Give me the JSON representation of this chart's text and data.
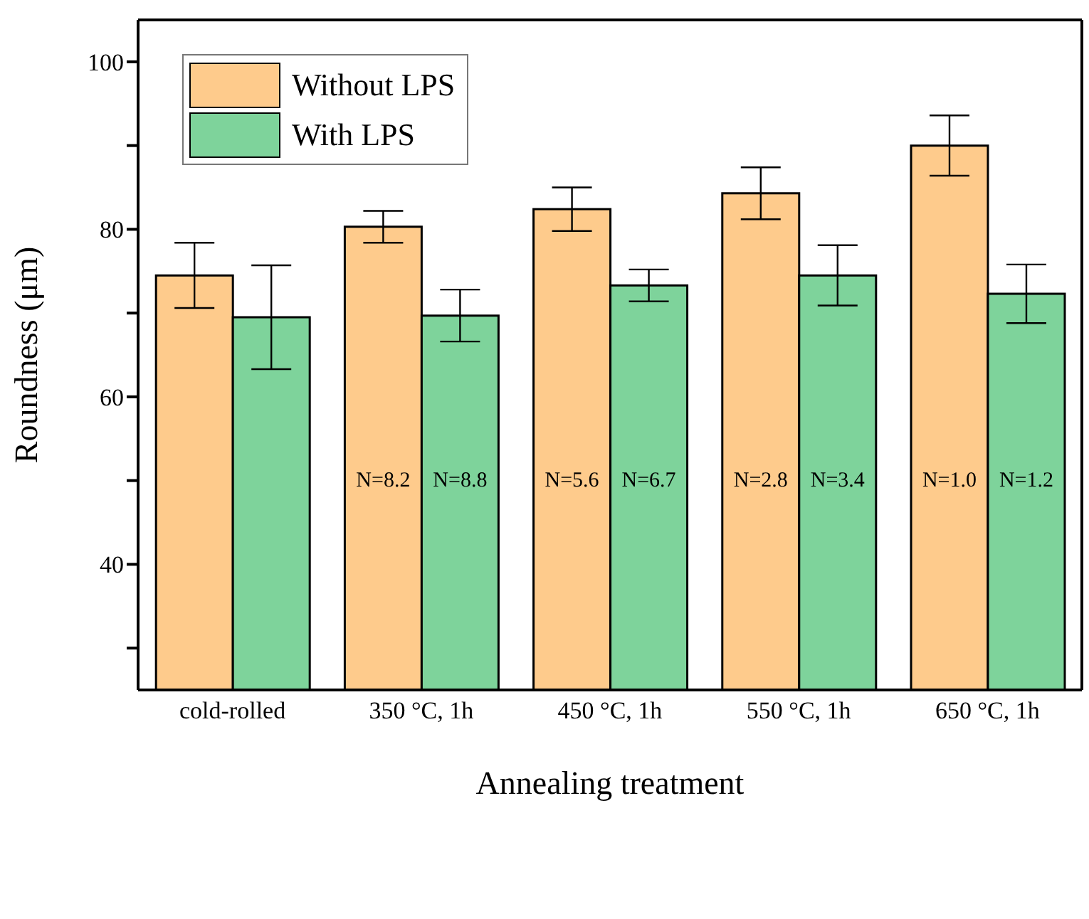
{
  "chart_data": {
    "type": "bar",
    "xlabel": "Annealing treatment",
    "ylabel": "Roundness (μm)",
    "categories": [
      "cold-rolled",
      "350 °C, 1h",
      "450 °C, 1h",
      "550 °C, 1h",
      "650 °C, 1h"
    ],
    "series": [
      {
        "name": "Without LPS",
        "color": "#fecb8c",
        "values": [
          74.5,
          80.3,
          82.4,
          84.3,
          90.0
        ],
        "errors": [
          3.9,
          1.9,
          2.6,
          3.1,
          3.6
        ]
      },
      {
        "name": "With LPS",
        "color": "#7ed39b",
        "values": [
          69.5,
          69.7,
          73.3,
          74.5,
          72.3
        ],
        "errors": [
          6.2,
          3.1,
          1.9,
          3.6,
          3.5
        ]
      }
    ],
    "ylim": [
      25,
      105
    ],
    "yticks": [
      {
        "value": 30,
        "label": null
      },
      40,
      {
        "value": 50,
        "label": null
      },
      60,
      {
        "value": 70,
        "label": null
      },
      80,
      {
        "value": 90,
        "label": null
      },
      100
    ],
    "grid": false,
    "legend": "top left",
    "annotations": [
      {
        "text": "N=8.2",
        "x": "350 °C, 1h",
        "y": 50
      },
      {
        "text": "N=8.8",
        "x": "350 °C, 1h",
        "y": 50
      },
      {
        "text": "N=5.6",
        "x": "450 °C, 1h",
        "y": 50
      },
      {
        "text": "N=6.7",
        "x": "450 °C, 1h",
        "y": 50
      },
      {
        "text": "N=2.8",
        "x": "550 °C, 1h",
        "y": 50
      },
      {
        "text": "N=3.4",
        "x": "550 °C, 1h",
        "y": 50
      },
      {
        "text": "N=1.0",
        "x": "650 °C, 1h",
        "y": 50
      },
      {
        "text": "N=1.2",
        "x": "650 °C, 1h",
        "y": 50
      }
    ]
  }
}
